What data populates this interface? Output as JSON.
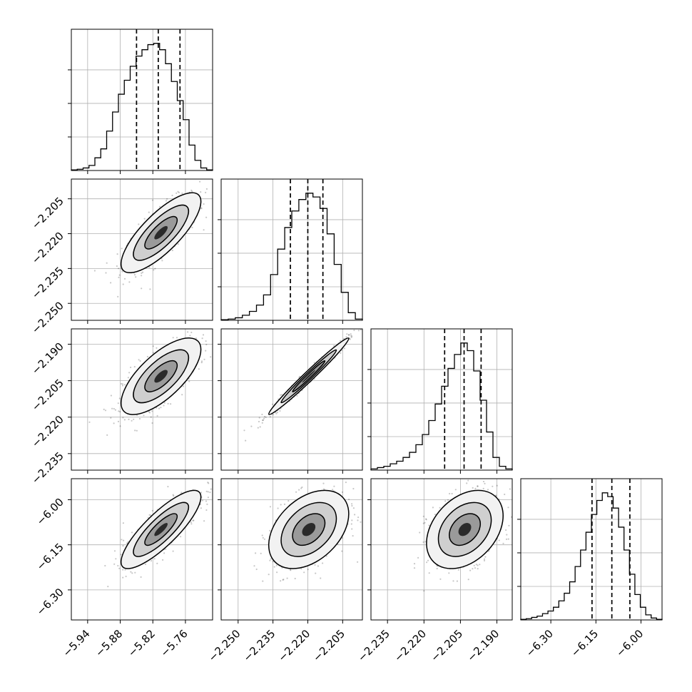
{
  "chart_data": {
    "type": "corner",
    "title": "",
    "parameters": [
      {
        "ticks": [
          -5.94,
          -5.88,
          -5.82,
          -5.76
        ],
        "tick_labels": [
          "−5.94",
          "−5.88",
          "−5.82",
          "−5.76"
        ],
        "range": [
          -5.97,
          -5.71
        ],
        "mean": -5.805,
        "sd": 0.035
      },
      {
        "ticks": [
          -2.25,
          -2.235,
          -2.22,
          -2.205
        ],
        "tick_labels": [
          "−2.250",
          "−2.235",
          "−2.220",
          "−2.205"
        ],
        "range": [
          -2.2573,
          -2.1965
        ],
        "mean": -2.2196,
        "sd": 0.0082
      },
      {
        "ticks": [
          -2.235,
          -2.22,
          -2.205,
          -2.19
        ],
        "tick_labels": [
          "−2.235",
          "−2.220",
          "−2.205",
          "−2.190"
        ],
        "range": [
          -2.2418,
          -2.1837
        ],
        "mean": -2.2032,
        "sd": 0.0075
      },
      {
        "ticks": [
          -6.3,
          -6.15,
          -6.0
        ],
        "tick_labels": [
          "−6.30",
          "−6.15",
          "−6.00"
        ],
        "range": [
          -6.4,
          -5.93
        ],
        "mean": -6.099,
        "sd": 0.062
      }
    ],
    "quantiles": [
      [
        -5.85,
        -5.81,
        -5.77
      ],
      [
        -2.2275,
        -2.22,
        -2.2135
      ],
      [
        -2.2115,
        -2.2035,
        -2.1965
      ],
      [
        -6.163,
        -6.097,
        -6.037
      ]
    ],
    "correlations": {
      "1-0": 0.78,
      "2-0": 0.7,
      "2-1": 0.985,
      "3-0": 0.83,
      "3-1": 0.4,
      "3-2": 0.35
    },
    "histograms": [
      [
        0.005,
        0.01,
        0.02,
        0.04,
        0.1,
        0.17,
        0.31,
        0.46,
        0.6,
        0.71,
        0.82,
        0.9,
        0.95,
        0.99,
        1.0,
        0.95,
        0.84,
        0.7,
        0.55,
        0.4,
        0.2,
        0.08,
        0.02,
        0.005
      ],
      [
        0.005,
        0.01,
        0.02,
        0.04,
        0.07,
        0.12,
        0.2,
        0.36,
        0.56,
        0.73,
        0.86,
        0.95,
        1.0,
        0.97,
        0.88,
        0.68,
        0.44,
        0.22,
        0.06,
        0.01
      ],
      [
        0.01,
        0.02,
        0.03,
        0.05,
        0.07,
        0.1,
        0.14,
        0.2,
        0.28,
        0.39,
        0.52,
        0.66,
        0.8,
        0.91,
        1.0,
        0.94,
        0.78,
        0.55,
        0.3,
        0.1,
        0.03,
        0.01
      ],
      [
        0.005,
        0.01,
        0.02,
        0.03,
        0.05,
        0.07,
        0.1,
        0.15,
        0.21,
        0.3,
        0.42,
        0.55,
        0.69,
        0.83,
        0.94,
        1.0,
        0.97,
        0.88,
        0.73,
        0.55,
        0.36,
        0.2,
        0.1,
        0.04,
        0.015,
        0.005
      ]
    ]
  }
}
